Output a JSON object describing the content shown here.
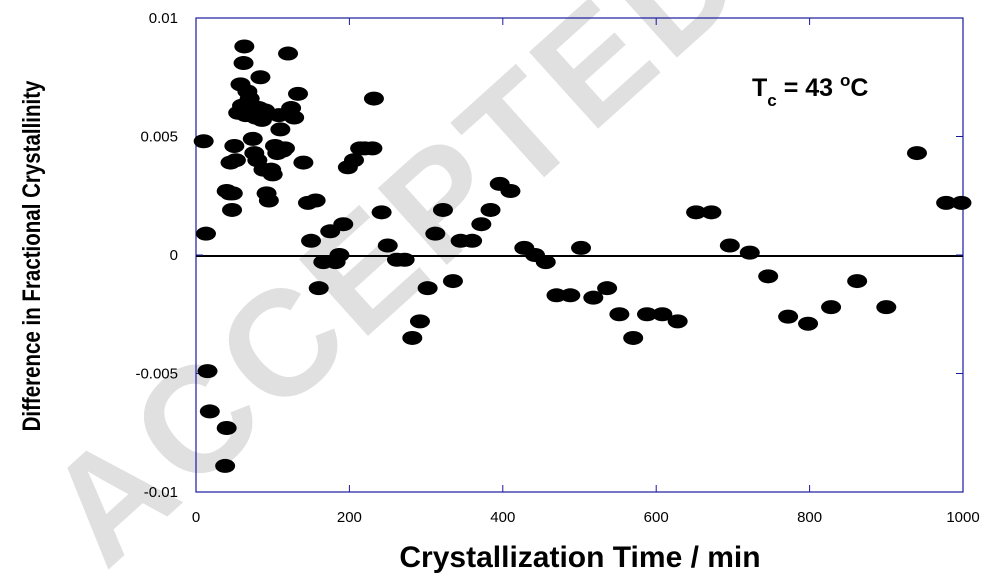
{
  "chart_data": {
    "type": "scatter",
    "title": "",
    "xlabel": "Crystallization Time / min",
    "ylabel": "Difference in Fractional Crystallinity",
    "xlim": [
      0,
      1000
    ],
    "ylim": [
      -0.01,
      0.01
    ],
    "x_ticks": [
      0,
      200,
      400,
      600,
      800,
      1000
    ],
    "x_tick_labels": [
      "0",
      "200",
      "400",
      "600",
      "800",
      "1000"
    ],
    "y_ticks": [
      -0.01,
      -0.005,
      0,
      0.005,
      0.01
    ],
    "y_tick_labels": [
      "-0.01",
      "-0.005",
      "0",
      "0.005",
      "0.01"
    ],
    "annotation": {
      "main": "T",
      "subscript": "c",
      "rest": " = 43 ",
      "superscript": "o",
      "unit": "C"
    },
    "zero_line": true,
    "grid": false,
    "marker_color": "#000000",
    "axis_color": "#1a1aa0",
    "watermark": "ACCEPTED",
    "series": [
      {
        "points": [
          [
            10,
            0.0048
          ],
          [
            13,
            0.0009
          ],
          [
            15,
            -0.0049
          ],
          [
            18,
            -0.0066
          ],
          [
            38,
            -0.0089
          ],
          [
            40,
            -0.0073
          ],
          [
            40,
            0.0027
          ],
          [
            44,
            0.0026
          ],
          [
            45,
            0.0039
          ],
          [
            47,
            0.0019
          ],
          [
            48,
            0.0026
          ],
          [
            50,
            0.0046
          ],
          [
            52,
            0.004
          ],
          [
            55,
            0.006
          ],
          [
            58,
            0.0072
          ],
          [
            60,
            0.0063
          ],
          [
            62,
            0.0081
          ],
          [
            63,
            0.0088
          ],
          [
            65,
            0.0059
          ],
          [
            67,
            0.0069
          ],
          [
            70,
            0.0066
          ],
          [
            72,
            0.0062
          ],
          [
            74,
            0.0049
          ],
          [
            76,
            0.0043
          ],
          [
            78,
            0.0058
          ],
          [
            80,
            0.004
          ],
          [
            82,
            0.0062
          ],
          [
            84,
            0.0075
          ],
          [
            86,
            0.0057
          ],
          [
            88,
            0.0036
          ],
          [
            90,
            0.0061
          ],
          [
            92,
            0.0026
          ],
          [
            95,
            0.0023
          ],
          [
            98,
            0.0036
          ],
          [
            100,
            0.0034
          ],
          [
            103,
            0.0046
          ],
          [
            106,
            0.0043
          ],
          [
            108,
            0.0059
          ],
          [
            110,
            0.0053
          ],
          [
            113,
            0.0044
          ],
          [
            116,
            0.0045
          ],
          [
            120,
            0.0085
          ],
          [
            124,
            0.0062
          ],
          [
            128,
            0.0058
          ],
          [
            133,
            0.0068
          ],
          [
            140,
            0.0039
          ],
          [
            146,
            0.0022
          ],
          [
            150,
            0.0006
          ],
          [
            156,
            0.0023
          ],
          [
            160,
            -0.0014
          ],
          [
            166,
            -0.0003
          ],
          [
            175,
            0.001
          ],
          [
            182,
            -0.0003
          ],
          [
            187,
            0.0
          ],
          [
            192,
            0.0013
          ],
          [
            198,
            0.0037
          ],
          [
            206,
            0.004
          ],
          [
            214,
            0.0045
          ],
          [
            220,
            0.0045
          ],
          [
            230,
            0.0045
          ],
          [
            232,
            0.0066
          ],
          [
            242,
            0.0018
          ],
          [
            250,
            0.0004
          ],
          [
            262,
            -0.0002
          ],
          [
            272,
            -0.0002
          ],
          [
            282,
            -0.0035
          ],
          [
            292,
            -0.0028
          ],
          [
            302,
            -0.0014
          ],
          [
            312,
            0.0009
          ],
          [
            322,
            0.0019
          ],
          [
            335,
            -0.0011
          ],
          [
            345,
            0.0006
          ],
          [
            360,
            0.0006
          ],
          [
            372,
            0.0013
          ],
          [
            384,
            0.0019
          ],
          [
            396,
            0.003
          ],
          [
            410,
            0.0027
          ],
          [
            428,
            0.0003
          ],
          [
            442,
            0.0
          ],
          [
            456,
            -0.0003
          ],
          [
            470,
            -0.0017
          ],
          [
            488,
            -0.0017
          ],
          [
            502,
            0.0003
          ],
          [
            518,
            -0.0018
          ],
          [
            536,
            -0.0014
          ],
          [
            552,
            -0.0025
          ],
          [
            570,
            -0.0035
          ],
          [
            588,
            -0.0025
          ],
          [
            608,
            -0.0025
          ],
          [
            628,
            -0.0028
          ],
          [
            652,
            0.0018
          ],
          [
            672,
            0.0018
          ],
          [
            696,
            0.0004
          ],
          [
            722,
            0.0001
          ],
          [
            746,
            -0.0009
          ],
          [
            772,
            -0.0026
          ],
          [
            798,
            -0.0029
          ],
          [
            828,
            -0.0022
          ],
          [
            862,
            -0.0011
          ],
          [
            900,
            -0.0022
          ],
          [
            940,
            0.0043
          ],
          [
            978,
            0.0022
          ],
          [
            998,
            0.0022
          ]
        ]
      }
    ]
  }
}
